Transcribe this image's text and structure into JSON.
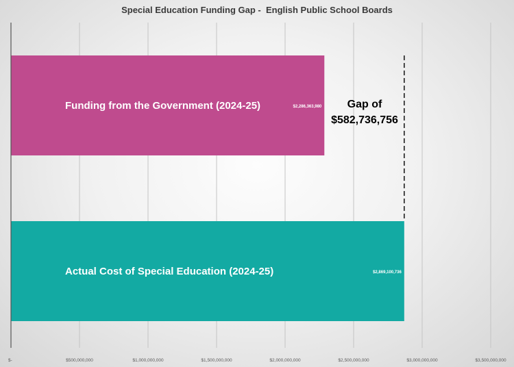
{
  "chart_data": {
    "type": "bar",
    "orientation": "horizontal",
    "title": "Special Education Funding Gap -  English Public School Boards",
    "xlabel": "",
    "ylabel": "",
    "xlim": [
      0,
      3500000000
    ],
    "x_ticks": [
      0,
      500000000,
      1000000000,
      1500000000,
      2000000000,
      2500000000,
      3000000000,
      3500000000
    ],
    "x_tick_labels": [
      "$-",
      "$500,000,000",
      "$1,000,000,000",
      "$1,500,000,000",
      "$2,000,000,000",
      "$2,500,000,000",
      "$3,000,000,000",
      "$3,500,000,000"
    ],
    "grid": "vertical",
    "legend": "none",
    "categories": [
      "Funding from the Government (2024-25)",
      "Actual Cost of Special Education (2024-25)"
    ],
    "values": [
      2286363980,
      2869100736
    ],
    "value_labels": [
      "$2,286,363,980",
      "$2,869,100,736"
    ],
    "colors": [
      "#bf4b8e",
      "#13aaa3"
    ],
    "annotation": {
      "line1": "Gap of",
      "line2": "$582,736,756",
      "value": 582736756,
      "style": "dashed vertical line at actual cost"
    }
  }
}
